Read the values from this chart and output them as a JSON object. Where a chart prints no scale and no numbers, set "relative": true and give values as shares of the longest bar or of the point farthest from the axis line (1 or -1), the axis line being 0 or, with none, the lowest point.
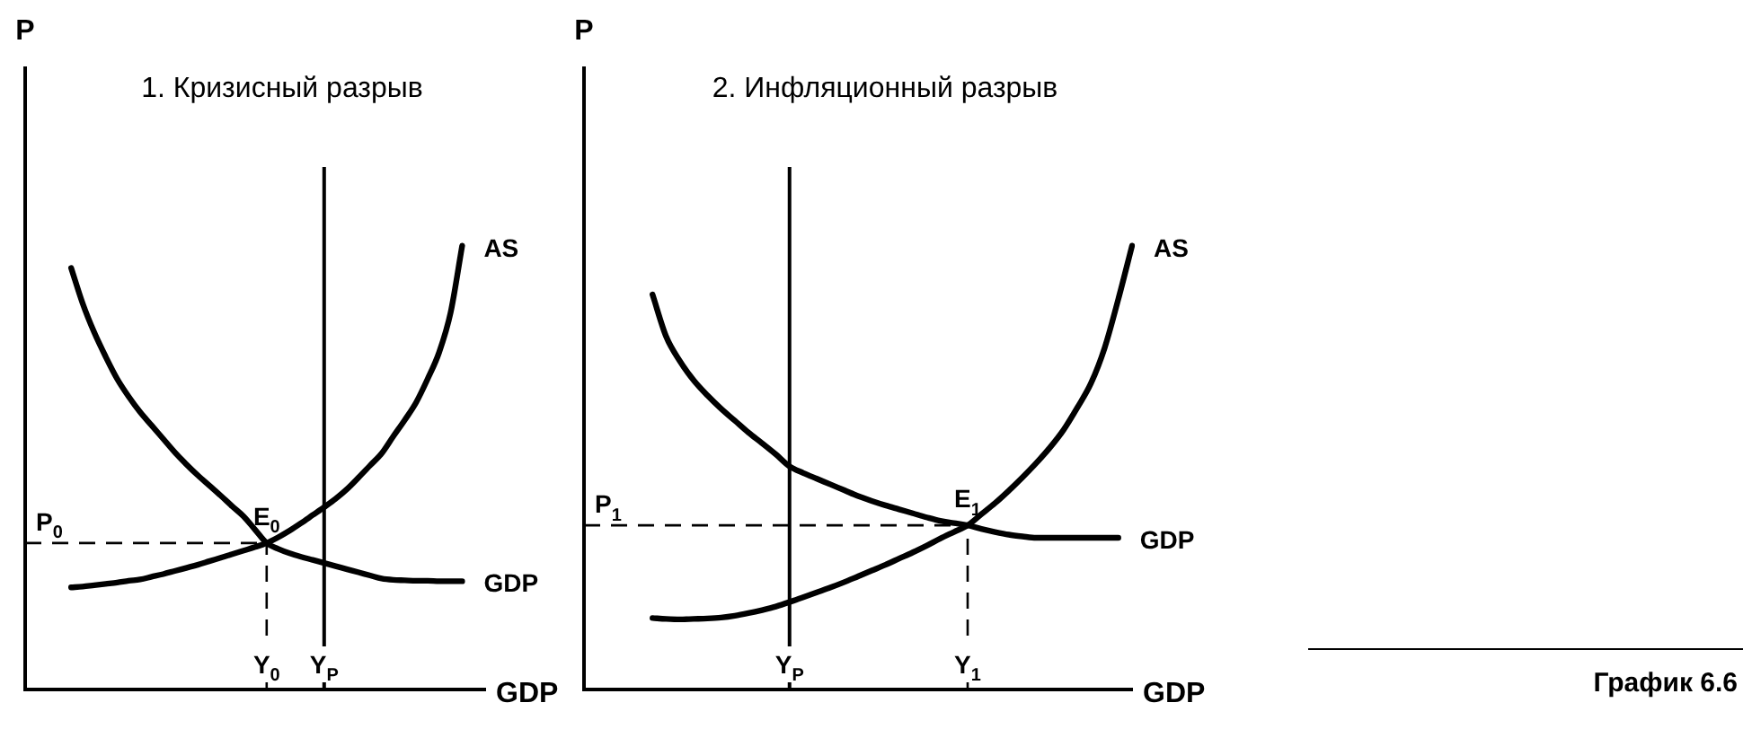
{
  "chart_data": [
    {
      "type": "line",
      "title": "1. Кризисный разрыв",
      "xlabel": "GDP",
      "ylabel": "P",
      "relative": true,
      "tick_labels": "x",
      "grid": false,
      "marker": "none",
      "categories": [
        null,
        null,
        null,
        null,
        null,
        null,
        null,
        null,
        null,
        null,
        null,
        null,
        null,
        null,
        null,
        null,
        null,
        null,
        null,
        null,
        null,
        "Y$_{0}$",
        null,
        null,
        null,
        null,
        "Y$_{P}$",
        null,
        null,
        null,
        null,
        null,
        null,
        null,
        null,
        null,
        null,
        null,
        null,
        null,
        null
      ],
      "series": [
        {
          "name": "AS",
          "color": "#000000",
          "values": [
            null,
            null,
            null,
            null,
            0.23,
            0.232,
            0.235,
            0.238,
            0.241,
            0.245,
            0.248,
            0.254,
            0.26,
            0.267,
            0.274,
            0.281,
            0.289,
            0.297,
            0.305,
            0.313,
            0.321,
            0.33,
            0.343,
            0.358,
            0.375,
            0.393,
            0.411,
            0.43,
            0.452,
            0.478,
            0.505,
            0.532,
            0.57,
            0.607,
            0.647,
            0.7,
            0.76,
            0.85,
            1.0,
            null,
            null
          ]
        },
        {
          "name": "GDP",
          "color": "#000000",
          "values": [
            null,
            null,
            null,
            null,
            0.95,
            0.87,
            0.805,
            0.75,
            0.7,
            0.66,
            0.625,
            0.595,
            0.565,
            0.535,
            0.508,
            0.483,
            0.46,
            0.437,
            0.413,
            0.39,
            0.36,
            0.33,
            0.317,
            0.307,
            0.299,
            0.292,
            0.285,
            0.278,
            0.271,
            0.264,
            0.257,
            0.25,
            0.247,
            0.246,
            0.245,
            0.245,
            0.244,
            0.244,
            0.244,
            null,
            null
          ]
        }
      ],
      "ref_lines": [
        {
          "axis": "x",
          "value": "Y$_{0}$",
          "line_style": "dashed"
        },
        {
          "axis": "x",
          "value": "Y$_{P}$",
          "line_style": "solid"
        },
        {
          "axis": "y",
          "value": 0.33,
          "label": "P$_{0}$",
          "line_style": "dashed"
        }
      ],
      "annotations": [
        {
          "text": "E$_{0}$",
          "x": "Y$_{0}$",
          "y": 0.33
        }
      ]
    },
    {
      "type": "line",
      "title": "2. Инфляционный разрыв",
      "xlabel": "GDP",
      "ylabel": "P",
      "relative": true,
      "tick_labels": "x",
      "grid": false,
      "marker": "none",
      "categories": [
        null,
        null,
        null,
        null,
        null,
        null,
        null,
        null,
        null,
        null,
        null,
        null,
        null,
        null,
        null,
        "Y$_{P}$",
        null,
        null,
        null,
        null,
        null,
        null,
        null,
        null,
        null,
        null,
        null,
        null,
        "Y$_{1}$",
        null,
        null,
        null,
        null,
        null,
        null,
        null,
        null,
        null,
        null,
        null,
        null
      ],
      "series": [
        {
          "name": "AS",
          "color": "#000000",
          "values": [
            null,
            null,
            null,
            null,
            null,
            0.161,
            0.159,
            0.158,
            0.159,
            0.16,
            0.162,
            0.166,
            0.172,
            0.179,
            0.187,
            0.197,
            0.208,
            0.219,
            0.23,
            0.242,
            0.255,
            0.268,
            0.281,
            0.295,
            0.309,
            0.324,
            0.34,
            0.355,
            0.37,
            0.395,
            0.42,
            0.448,
            0.478,
            0.51,
            0.545,
            0.585,
            0.635,
            0.69,
            0.77,
            0.88,
            1.0
          ]
        },
        {
          "name": "GDP",
          "color": "#000000",
          "values": [
            null,
            null,
            null,
            null,
            null,
            0.89,
            0.795,
            0.74,
            0.697,
            0.663,
            0.633,
            0.606,
            0.579,
            0.555,
            0.53,
            0.503,
            0.488,
            0.475,
            0.462,
            0.449,
            0.436,
            0.425,
            0.415,
            0.406,
            0.397,
            0.388,
            0.38,
            0.375,
            0.37,
            0.362,
            0.355,
            0.349,
            0.345,
            0.342,
            0.342,
            0.342,
            0.342,
            0.342,
            0.342,
            0.342,
            null
          ]
        }
      ],
      "ref_lines": [
        {
          "axis": "x",
          "value": "Y$_{P}$",
          "line_style": "solid"
        },
        {
          "axis": "x",
          "value": "Y$_{1}$",
          "line_style": "dashed"
        },
        {
          "axis": "y",
          "value": 0.37,
          "label": "P$_{1}$",
          "line_style": "dashed"
        }
      ],
      "annotations": [
        {
          "text": "E$_{1}$",
          "x": "Y$_{1}$",
          "y": 0.37
        },
        "График 6.6"
      ]
    }
  ]
}
